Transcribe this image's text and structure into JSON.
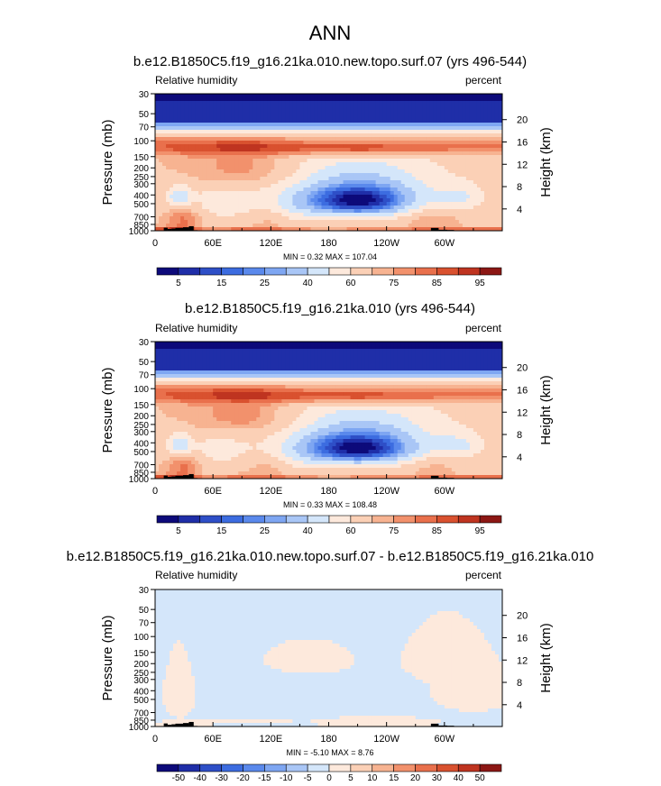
{
  "figure_title": "ANN",
  "colors": {
    "abs_scale": [
      "#0d0a7a",
      "#1f2ea8",
      "#2e4fc7",
      "#3c6ce0",
      "#5a89ec",
      "#7ea6f2",
      "#a9c6f6",
      "#d4e6fa",
      "#fde9dc",
      "#fbd0b6",
      "#f7b391",
      "#f2916c",
      "#e9704c",
      "#d9512f",
      "#bf3420",
      "#8c1714"
    ],
    "diff_scale": [
      "#0d0a7a",
      "#1f2ea8",
      "#2e4fc7",
      "#3c6ce0",
      "#5a89ec",
      "#7ea6f2",
      "#a9c6f6",
      "#d4e6fa",
      "#fde9dc",
      "#fbd0b6",
      "#f7b391",
      "#f2916c",
      "#e9704c",
      "#d9512f",
      "#bf3420",
      "#8c1714"
    ],
    "topography": "#000000"
  },
  "chart_data": [
    {
      "type": "heatmap",
      "title": "b.e12.B1850C5.f19_g16.21ka.010.new.topo.surf.07 (yrs 496-544)",
      "variable_label": "Relative humidity",
      "units_label": "percent",
      "ylabel": "Pressure (mb)",
      "ylabel_right": "Height (km)",
      "x_ticks": [
        "0",
        "60E",
        "120E",
        "180",
        "120W",
        "60W"
      ],
      "x_tick_lon": [
        0,
        60,
        120,
        180,
        240,
        300
      ],
      "xlim": [
        0,
        360
      ],
      "y_ticks": [
        "30",
        "50",
        "70",
        "100",
        "150",
        "200",
        "250",
        "300",
        "400",
        "500",
        "700",
        "850",
        "1000"
      ],
      "y_tick_p": [
        30,
        50,
        70,
        100,
        150,
        200,
        250,
        300,
        400,
        500,
        700,
        850,
        1000
      ],
      "ylim": [
        1000,
        30
      ],
      "height_ticks": [
        "20",
        "16",
        "12",
        "8",
        "4"
      ],
      "height_tick_km": [
        20,
        16,
        12,
        8,
        4
      ],
      "stats": "MIN =   0.32  MAX = 107.04",
      "colorbar_labels": [
        "5",
        "15",
        "25",
        "40",
        "60",
        "75",
        "85",
        "95"
      ],
      "colorbar_levels": [
        0,
        5,
        10,
        15,
        20,
        25,
        30,
        40,
        50,
        60,
        70,
        75,
        80,
        85,
        90,
        95,
        100
      ]
    },
    {
      "type": "heatmap",
      "title": "b.e12.B1850C5.f19_g16.21ka.010 (yrs 496-544)",
      "variable_label": "Relative humidity",
      "units_label": "percent",
      "ylabel": "Pressure (mb)",
      "ylabel_right": "Height (km)",
      "x_ticks": [
        "0",
        "60E",
        "120E",
        "180",
        "120W",
        "60W"
      ],
      "x_tick_lon": [
        0,
        60,
        120,
        180,
        240,
        300
      ],
      "xlim": [
        0,
        360
      ],
      "y_ticks": [
        "30",
        "50",
        "70",
        "100",
        "150",
        "200",
        "250",
        "300",
        "400",
        "500",
        "700",
        "850",
        "1000"
      ],
      "y_tick_p": [
        30,
        50,
        70,
        100,
        150,
        200,
        250,
        300,
        400,
        500,
        700,
        850,
        1000
      ],
      "ylim": [
        1000,
        30
      ],
      "height_ticks": [
        "20",
        "16",
        "12",
        "8",
        "4"
      ],
      "height_tick_km": [
        20,
        16,
        12,
        8,
        4
      ],
      "stats": "MIN =   0.33  MAX = 108.48",
      "colorbar_labels": [
        "5",
        "15",
        "25",
        "40",
        "60",
        "75",
        "85",
        "95"
      ],
      "colorbar_levels": [
        0,
        5,
        10,
        15,
        20,
        25,
        30,
        40,
        50,
        60,
        70,
        75,
        80,
        85,
        90,
        95,
        100
      ]
    },
    {
      "type": "heatmap",
      "title": "b.e12.B1850C5.f19_g16.21ka.010.new.topo.surf.07 - b.e12.B1850C5.f19_g16.21ka.010",
      "variable_label": "Relative humidity",
      "units_label": "percent",
      "ylabel": "Pressure (mb)",
      "ylabel_right": "Height (km)",
      "x_ticks": [
        "0",
        "60E",
        "120E",
        "180",
        "120W",
        "60W"
      ],
      "x_tick_lon": [
        0,
        60,
        120,
        180,
        240,
        300
      ],
      "xlim": [
        0,
        360
      ],
      "y_ticks": [
        "30",
        "50",
        "70",
        "100",
        "150",
        "200",
        "250",
        "300",
        "400",
        "500",
        "700",
        "850",
        "1000"
      ],
      "y_tick_p": [
        30,
        50,
        70,
        100,
        150,
        200,
        250,
        300,
        400,
        500,
        700,
        850,
        1000
      ],
      "ylim": [
        1000,
        30
      ],
      "height_ticks": [
        "20",
        "16",
        "12",
        "8",
        "4"
      ],
      "height_tick_km": [
        20,
        16,
        12,
        8,
        4
      ],
      "stats": "MIN =  -5.10  MAX =   8.76",
      "colorbar_labels": [
        "-50",
        "-40",
        "-30",
        "-20",
        "-15",
        "-10",
        "-5",
        "0",
        "5",
        "10",
        "15",
        "20",
        "30",
        "40",
        "50"
      ],
      "colorbar_levels": [
        -60,
        -50,
        -40,
        -30,
        -20,
        -15,
        -10,
        -5,
        0,
        5,
        10,
        15,
        20,
        30,
        40,
        50,
        60
      ]
    }
  ]
}
